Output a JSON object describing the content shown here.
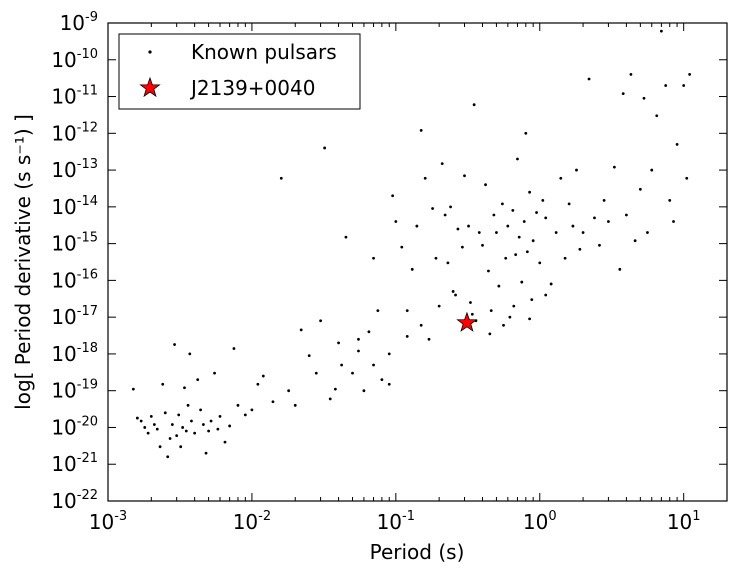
{
  "chart_data": {
    "type": "scatter",
    "xlabel": "Period (s)",
    "ylabel": "log[ Period derivative (s s⁻¹) ]",
    "xscale": "log",
    "yscale": "log",
    "xlim": [
      0.001,
      20
    ],
    "ylim": [
      1e-22,
      1e-09
    ],
    "grid": false,
    "legend_position": "top-left",
    "x_ticks": [
      {
        "base": "10",
        "exp": "-3",
        "value": 0.001
      },
      {
        "base": "10",
        "exp": "-2",
        "value": 0.01
      },
      {
        "base": "10",
        "exp": "-1",
        "value": 0.1
      },
      {
        "base": "10",
        "exp": "0",
        "value": 1
      },
      {
        "base": "10",
        "exp": "1",
        "value": 10
      }
    ],
    "y_ticks": [
      {
        "base": "10",
        "exp": "-22",
        "value": 1e-22
      },
      {
        "base": "10",
        "exp": "-21",
        "value": 1e-21
      },
      {
        "base": "10",
        "exp": "-20",
        "value": 1e-20
      },
      {
        "base": "10",
        "exp": "-19",
        "value": 1e-19
      },
      {
        "base": "10",
        "exp": "-18",
        "value": 1e-18
      },
      {
        "base": "10",
        "exp": "-17",
        "value": 1e-17
      },
      {
        "base": "10",
        "exp": "-16",
        "value": 1e-16
      },
      {
        "base": "10",
        "exp": "-15",
        "value": 1e-15
      },
      {
        "base": "10",
        "exp": "-14",
        "value": 1e-14
      },
      {
        "base": "10",
        "exp": "-13",
        "value": 1e-13
      },
      {
        "base": "10",
        "exp": "-12",
        "value": 1e-12
      },
      {
        "base": "10",
        "exp": "-11",
        "value": 1e-11
      },
      {
        "base": "10",
        "exp": "-10",
        "value": 1e-10
      },
      {
        "base": "10",
        "exp": "-9",
        "value": 1e-09
      }
    ],
    "series": [
      {
        "name": "Known pulsars",
        "marker": "dot",
        "color": "#000000",
        "points": [
          [
            0.0015,
            1.1e-19
          ],
          [
            0.0016,
            1.8e-20
          ],
          [
            0.0017,
            1.5e-20
          ],
          [
            0.0018,
            1e-20
          ],
          [
            0.0019,
            7e-21
          ],
          [
            0.002,
            2e-20
          ],
          [
            0.0021,
            1.2e-20
          ],
          [
            0.0022,
            9e-21
          ],
          [
            0.0023,
            3e-21
          ],
          [
            0.0024,
            1.5e-19
          ],
          [
            0.0025,
            2.5e-20
          ],
          [
            0.0026,
            1.6e-21
          ],
          [
            0.0027,
            5e-21
          ],
          [
            0.0028,
            1.2e-20
          ],
          [
            0.0029,
            1.8e-18
          ],
          [
            0.003,
            6e-21
          ],
          [
            0.0031,
            2.2e-20
          ],
          [
            0.0032,
            3e-21
          ],
          [
            0.0033,
            1e-20
          ],
          [
            0.0034,
            1.2e-19
          ],
          [
            0.0035,
            8e-21
          ],
          [
            0.0036,
            4e-20
          ],
          [
            0.0037,
            1e-18
          ],
          [
            0.0038,
            1.5e-20
          ],
          [
            0.004,
            7e-21
          ],
          [
            0.0042,
            2e-19
          ],
          [
            0.0044,
            3e-20
          ],
          [
            0.0046,
            1.2e-20
          ],
          [
            0.0048,
            2e-21
          ],
          [
            0.005,
            8e-21
          ],
          [
            0.0052,
            1.5e-20
          ],
          [
            0.0055,
            3e-19
          ],
          [
            0.0058,
            9e-21
          ],
          [
            0.006,
            2e-20
          ],
          [
            0.0065,
            4e-21
          ],
          [
            0.007,
            1.1e-20
          ],
          [
            0.0075,
            1.4e-18
          ],
          [
            0.008,
            4e-20
          ],
          [
            0.009,
            2.2e-20
          ],
          [
            0.01,
            3e-20
          ],
          [
            0.011,
            1.5e-19
          ],
          [
            0.012,
            2.5e-19
          ],
          [
            0.014,
            5e-20
          ],
          [
            0.016,
            6e-14
          ],
          [
            0.018,
            1e-19
          ],
          [
            0.02,
            4e-20
          ],
          [
            0.022,
            4.5e-18
          ],
          [
            0.025,
            9e-19
          ],
          [
            0.028,
            3e-19
          ],
          [
            0.03,
            8e-18
          ],
          [
            0.032,
            4e-13
          ],
          [
            0.035,
            6e-20
          ],
          [
            0.038,
            1.1e-19
          ],
          [
            0.04,
            2e-18
          ],
          [
            0.042,
            5e-19
          ],
          [
            0.045,
            1.5e-15
          ],
          [
            0.05,
            3e-19
          ],
          [
            0.055,
            2.5e-18
          ],
          [
            0.06,
            1e-19
          ],
          [
            0.065,
            4e-18
          ],
          [
            0.07,
            4e-16
          ],
          [
            0.075,
            1.5e-17
          ],
          [
            0.08,
            2e-19
          ],
          [
            0.09,
            1e-18
          ],
          [
            0.095,
            2e-14
          ],
          [
            0.1,
            4e-15
          ],
          [
            0.11,
            8e-16
          ],
          [
            0.12,
            1.5e-17
          ],
          [
            0.13,
            2e-16
          ],
          [
            0.14,
            3e-15
          ],
          [
            0.15,
            1.2e-12
          ],
          [
            0.16,
            6e-14
          ],
          [
            0.17,
            2.5e-18
          ],
          [
            0.18,
            9e-15
          ],
          [
            0.19,
            4e-16
          ],
          [
            0.2,
            2e-17
          ],
          [
            0.21,
            1.5e-13
          ],
          [
            0.22,
            6e-15
          ],
          [
            0.23,
            3e-16
          ],
          [
            0.24,
            1e-14
          ],
          [
            0.25,
            5e-17
          ],
          [
            0.27,
            2.5e-15
          ],
          [
            0.29,
            8e-16
          ],
          [
            0.3,
            7e-14
          ],
          [
            0.32,
            3e-15
          ],
          [
            0.34,
            1.2e-17
          ],
          [
            0.35,
            6e-12
          ],
          [
            0.38,
            2e-15
          ],
          [
            0.4,
            9e-16
          ],
          [
            0.42,
            4e-14
          ],
          [
            0.44,
            1.8e-16
          ],
          [
            0.45,
            3.5e-18
          ],
          [
            0.48,
            6e-15
          ],
          [
            0.5,
            2e-15
          ],
          [
            0.52,
            7e-17
          ],
          [
            0.55,
            1.2e-14
          ],
          [
            0.58,
            4e-16
          ],
          [
            0.6,
            3e-15
          ],
          [
            0.62,
            1e-17
          ],
          [
            0.65,
            8e-15
          ],
          [
            0.68,
            5e-16
          ],
          [
            0.7,
            2e-13
          ],
          [
            0.72,
            1.5e-15
          ],
          [
            0.75,
            9e-17
          ],
          [
            0.78,
            4e-15
          ],
          [
            0.8,
            1e-12
          ],
          [
            0.82,
            6e-16
          ],
          [
            0.85,
            2.5e-14
          ],
          [
            0.88,
            3e-17
          ],
          [
            0.9,
            1.2e-15
          ],
          [
            0.95,
            7e-15
          ],
          [
            1.0,
            3e-16
          ],
          [
            1.05,
            1.5e-14
          ],
          [
            1.1,
            5e-15
          ],
          [
            1.2,
            8e-17
          ],
          [
            1.3,
            2e-15
          ],
          [
            1.4,
            6e-14
          ],
          [
            1.5,
            4e-16
          ],
          [
            1.6,
            1.2e-14
          ],
          [
            1.7,
            3e-15
          ],
          [
            1.8,
            1e-13
          ],
          [
            1.9,
            7e-16
          ],
          [
            2.0,
            2e-15
          ],
          [
            2.2,
            3e-11
          ],
          [
            2.4,
            5e-15
          ],
          [
            2.6,
            9e-16
          ],
          [
            2.8,
            1.5e-14
          ],
          [
            3.0,
            4e-15
          ],
          [
            3.3,
            1.2e-13
          ],
          [
            3.6,
            2e-16
          ],
          [
            3.8,
            1.2e-11
          ],
          [
            4.0,
            6e-15
          ],
          [
            4.3,
            4e-11
          ],
          [
            4.6,
            1.2e-15
          ],
          [
            5.0,
            3e-14
          ],
          [
            5.3,
            9e-12
          ],
          [
            5.6,
            2e-15
          ],
          [
            6.0,
            1e-13
          ],
          [
            6.5,
            3e-12
          ],
          [
            7.0,
            6e-10
          ],
          [
            7.5,
            2e-11
          ],
          [
            8.0,
            1.5e-14
          ],
          [
            8.5,
            4e-15
          ],
          [
            9.0,
            5e-13
          ],
          [
            10.0,
            2e-11
          ],
          [
            10.5,
            6e-14
          ],
          [
            11.0,
            4e-11
          ],
          [
            0.33,
            2.5e-17
          ],
          [
            0.36,
            8e-18
          ],
          [
            0.46,
            1.5e-17
          ],
          [
            0.56,
            6e-18
          ],
          [
            0.66,
            2e-17
          ],
          [
            0.85,
            9e-18
          ],
          [
            1.1,
            4e-17
          ],
          [
            0.26,
            4e-17
          ],
          [
            0.15,
            6e-18
          ],
          [
            0.12,
            3e-18
          ],
          [
            0.09,
            1.5e-19
          ],
          [
            0.07,
            5e-19
          ],
          [
            0.055,
            1.2e-18
          ]
        ]
      },
      {
        "name": "J2139+0040",
        "marker": "star",
        "color": "#ff0000",
        "points": [
          [
            0.312,
            7e-18
          ]
        ]
      }
    ],
    "legend": {
      "items": [
        {
          "label": "Known pulsars",
          "marker": "dot"
        },
        {
          "label": "J2139+0040",
          "marker": "star"
        }
      ]
    }
  }
}
